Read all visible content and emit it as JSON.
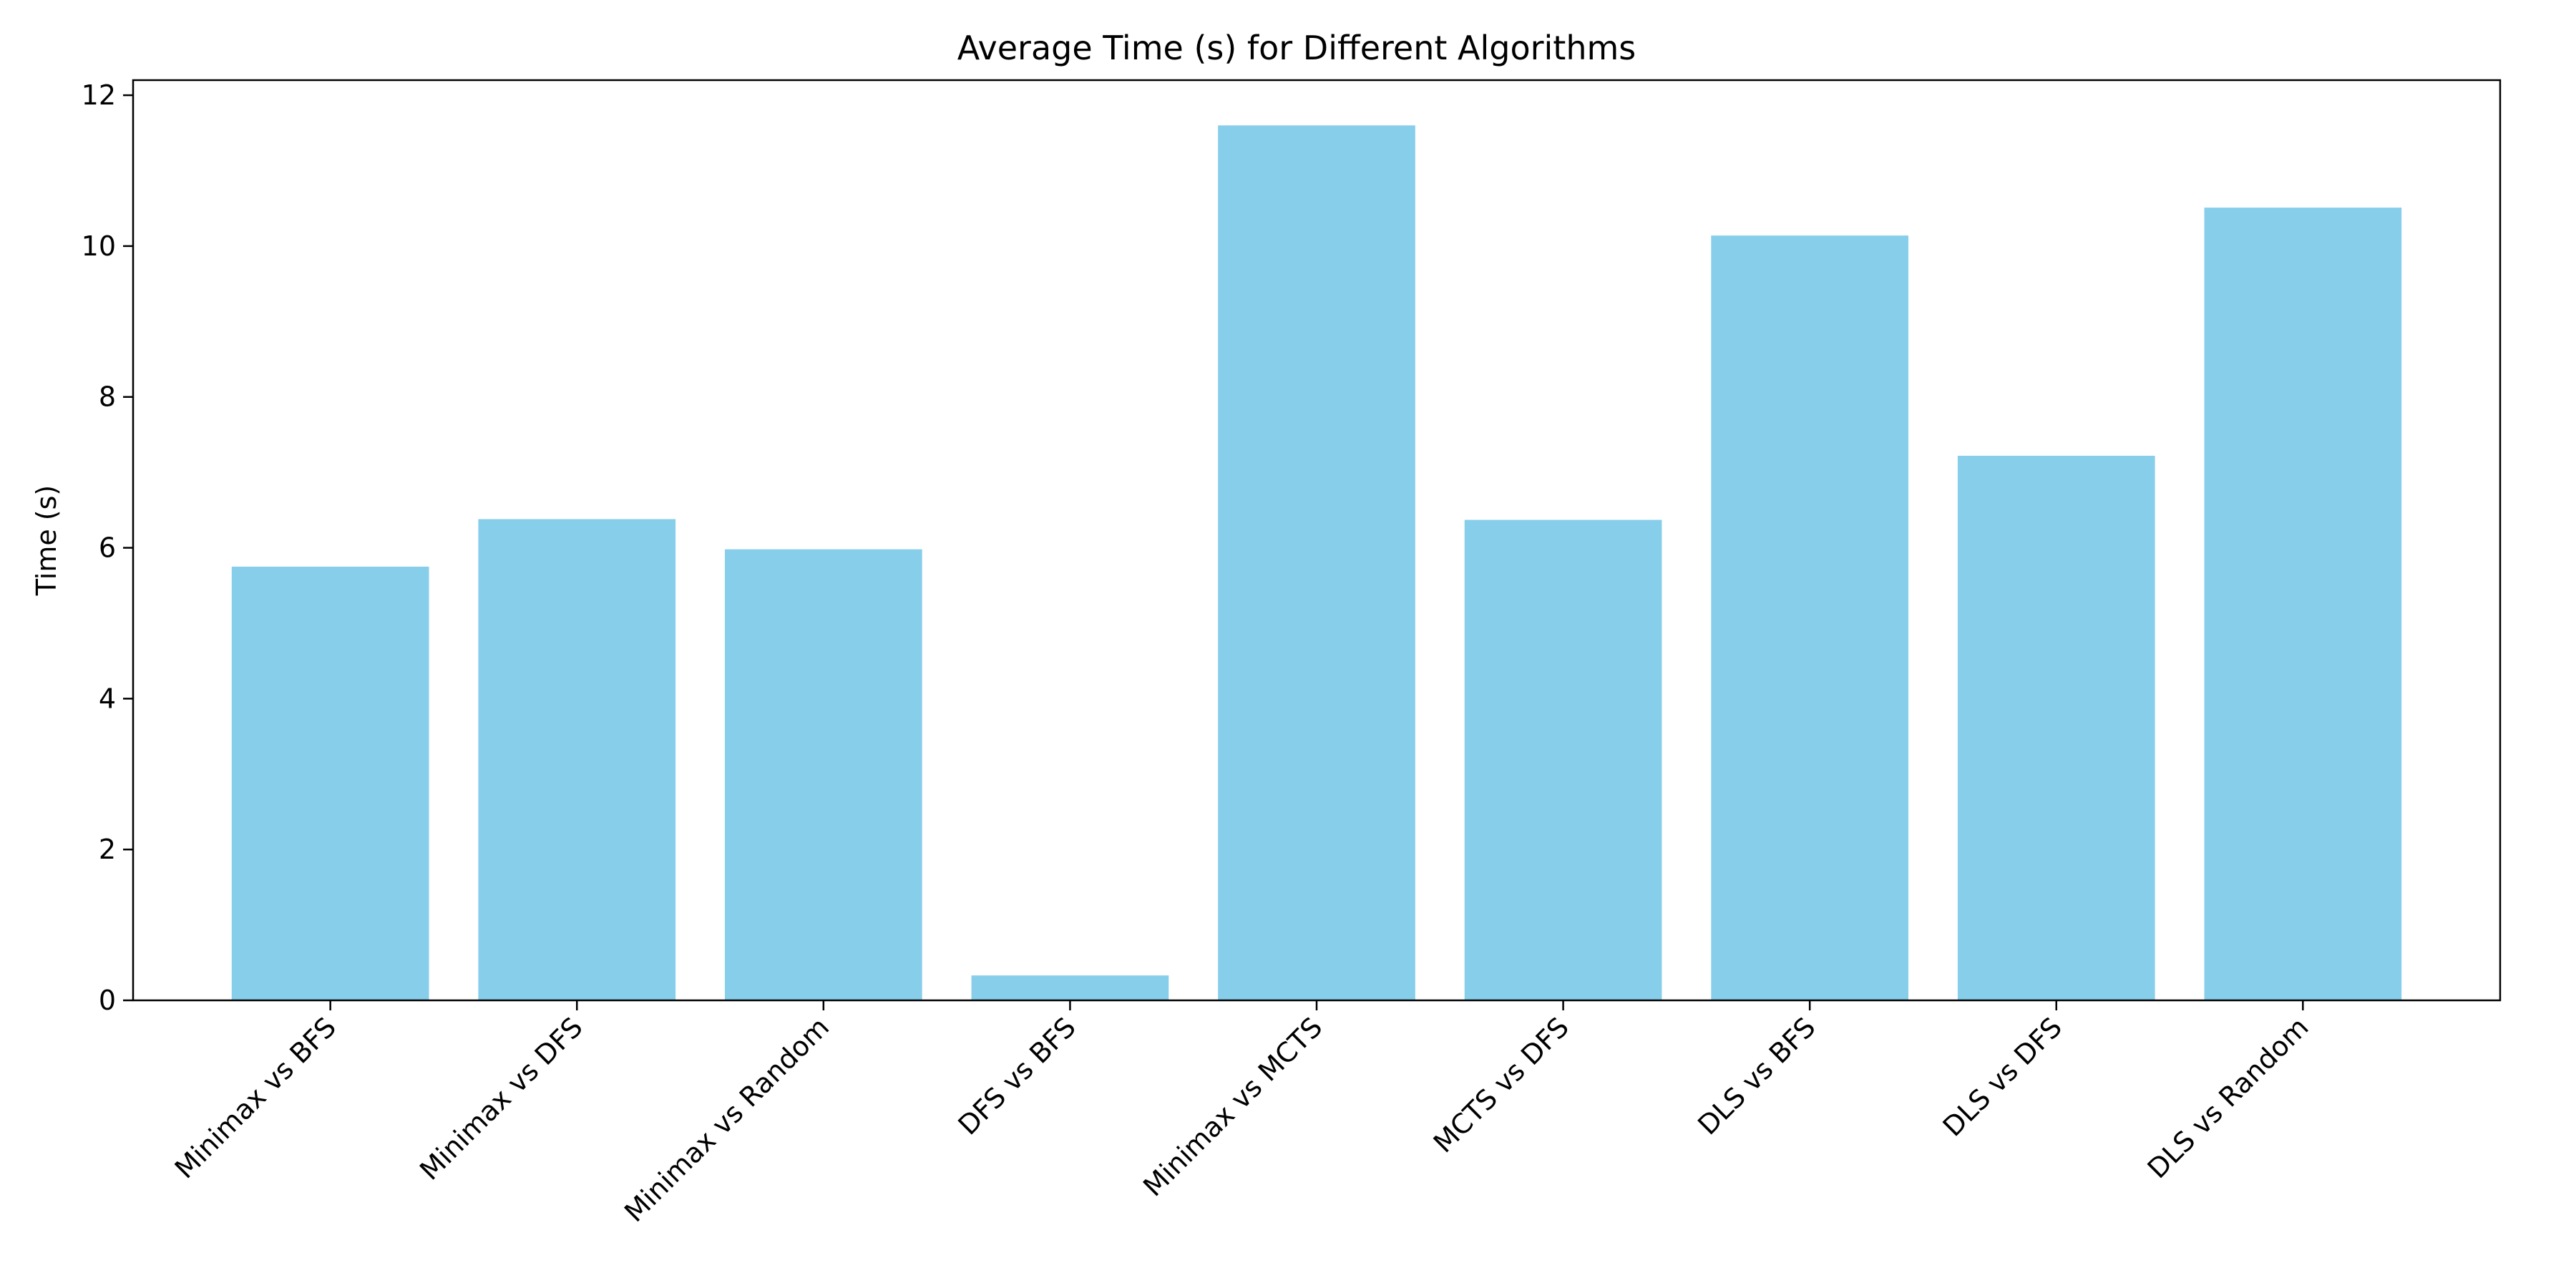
{
  "chart_data": {
    "type": "bar",
    "title": "Average Time (s) for Different Algorithms",
    "xlabel": "",
    "ylabel": "Time (s)",
    "categories": [
      "Minimax vs BFS",
      "Minimax vs DFS",
      "Minimax vs Random",
      "DFS vs BFS",
      "Minimax vs MCTS",
      "MCTS vs DFS",
      "DLS vs BFS",
      "DLS vs DFS",
      "DLS vs Random"
    ],
    "values": [
      5.75,
      6.38,
      5.98,
      0.33,
      11.6,
      6.37,
      10.14,
      7.22,
      10.51
    ],
    "ylim": [
      0,
      12.2
    ],
    "yticks": [
      "0",
      "2",
      "4",
      "6",
      "8",
      "10",
      "12"
    ],
    "ytick_values": [
      0,
      2,
      4,
      6,
      8,
      10,
      12
    ],
    "bar_color": "#87CEEB",
    "grid": false,
    "legend": "none"
  }
}
